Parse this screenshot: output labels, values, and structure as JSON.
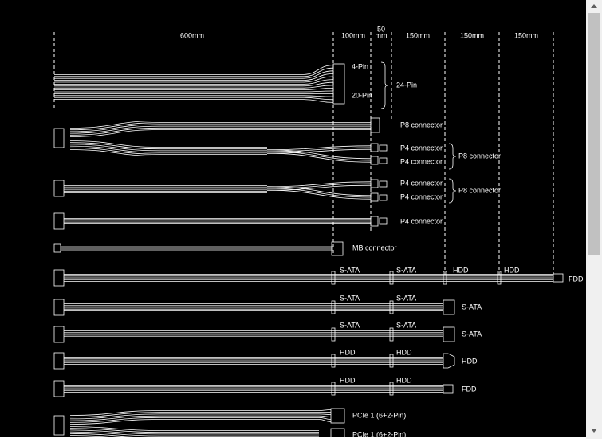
{
  "dimensions": [
    "600mm",
    "100mm",
    "50",
    "mm",
    "150mm",
    "150mm",
    "150mm"
  ],
  "cables": [
    {
      "labels": [
        "4-Pin",
        "20-Pin",
        "24-Pin"
      ]
    },
    {
      "labels": [
        "P8 connector"
      ]
    },
    {
      "labels": [
        "P4 connector",
        "P4 connector",
        "P8 connector"
      ]
    },
    {
      "labels": [
        "P4 connector",
        "P4 connector",
        "P8 connector"
      ]
    },
    {
      "labels": [
        "P4 connector"
      ]
    },
    {
      "labels": [
        "MB connector"
      ]
    },
    {
      "labels": [
        "S-ATA",
        "S-ATA",
        "HDD",
        "HDD",
        "FDD"
      ]
    },
    {
      "labels": [
        "S-ATA",
        "S-ATA",
        "S-ATA"
      ]
    },
    {
      "labels": [
        "S-ATA",
        "S-ATA",
        "S-ATA"
      ]
    },
    {
      "labels": [
        "HDD",
        "HDD",
        "HDD"
      ]
    },
    {
      "labels": [
        "HDD",
        "HDD",
        "FDD"
      ]
    },
    {
      "labels": [
        "PCIe 1 (6+2-Pin)"
      ]
    },
    {
      "labels": [
        "PCIe 1 (6+2-Pin)"
      ]
    }
  ]
}
